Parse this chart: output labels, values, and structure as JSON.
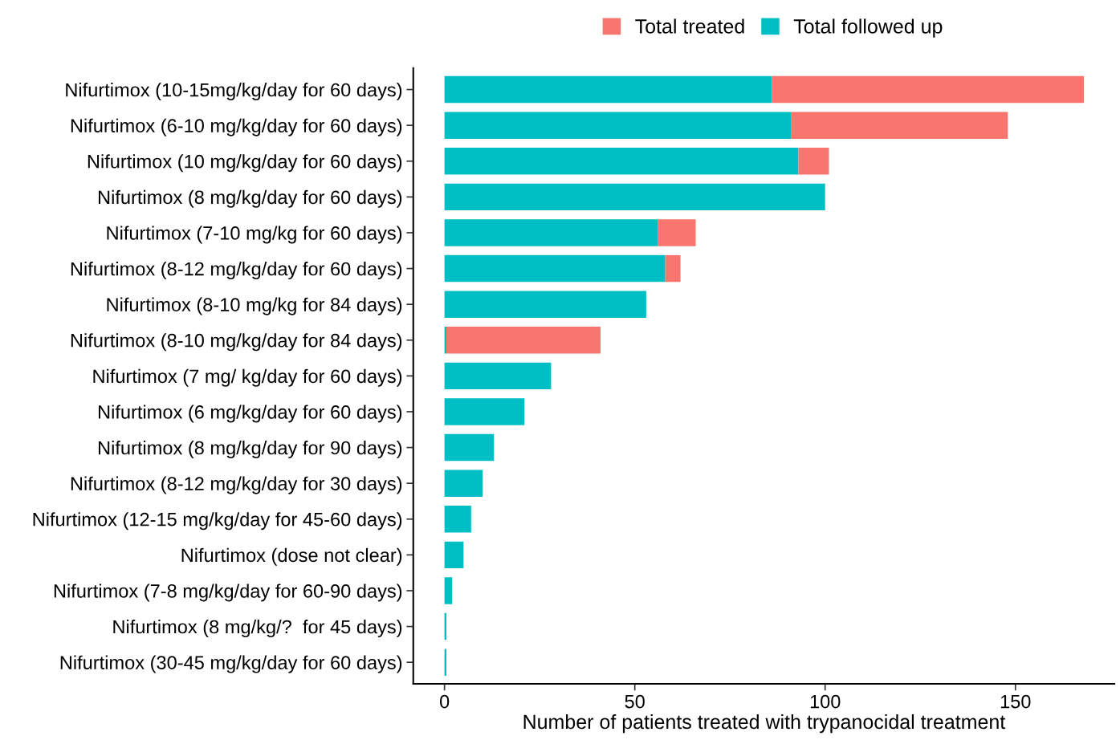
{
  "chart_data": {
    "type": "bar",
    "orientation": "horizontal",
    "stacked": true,
    "categories": [
      "Nifurtimox (10-15mg/kg/day for 60 days)",
      "Nifurtimox (6-10 mg/kg/day for 60 days)",
      "Nifurtimox (10 mg/kg/day for 60 days)",
      "Nifurtimox (8 mg/kg/day for 60 days)",
      "Nifurtimox (7-10 mg/kg for 60 days)",
      "Nifurtimox (8-12 mg/kg/day for 60 days)",
      "Nifurtimox (8-10 mg/kg for 84 days)",
      "Nifurtimox (8-10 mg/kg/day for 84 days)",
      "Nifurtimox (7 mg/ kg/day for 60 days)",
      "Nifurtimox (6 mg/kg/day for 60 days)",
      "Nifurtimox (8 mg/kg/day for 90 days)",
      "Nifurtimox (8-12 mg/kg/day for 30 days)",
      "Nifurtimox (12-15 mg/kg/day for 45-60 days)",
      "Nifurtimox (dose not clear)",
      "Nifurtimox (7-8 mg/kg/day for 60-90 days)",
      "Nifurtimox (8 mg/kg/?  for 45 days)",
      "Nifurtimox (30-45 mg/kg/day for 60 days)"
    ],
    "series": [
      {
        "name": "Total followed up",
        "color": "#00bfc4",
        "values": [
          86,
          91,
          93,
          100,
          56,
          58,
          53,
          0.5,
          28,
          21,
          13,
          10,
          7,
          5,
          2,
          0.5,
          0.5
        ]
      },
      {
        "name": "Total treated",
        "color": "#f8766d",
        "values": [
          82,
          57,
          8,
          0,
          10,
          4,
          0,
          40.5,
          0,
          0,
          0,
          0,
          0,
          0,
          0,
          0,
          0
        ]
      }
    ],
    "xlabel": "Number of patients treated with trypanocidal treatment",
    "xlim": [
      -8.2,
      176
    ],
    "xticks": [
      0,
      50,
      100,
      150
    ],
    "grid": false,
    "legend": "top right"
  }
}
